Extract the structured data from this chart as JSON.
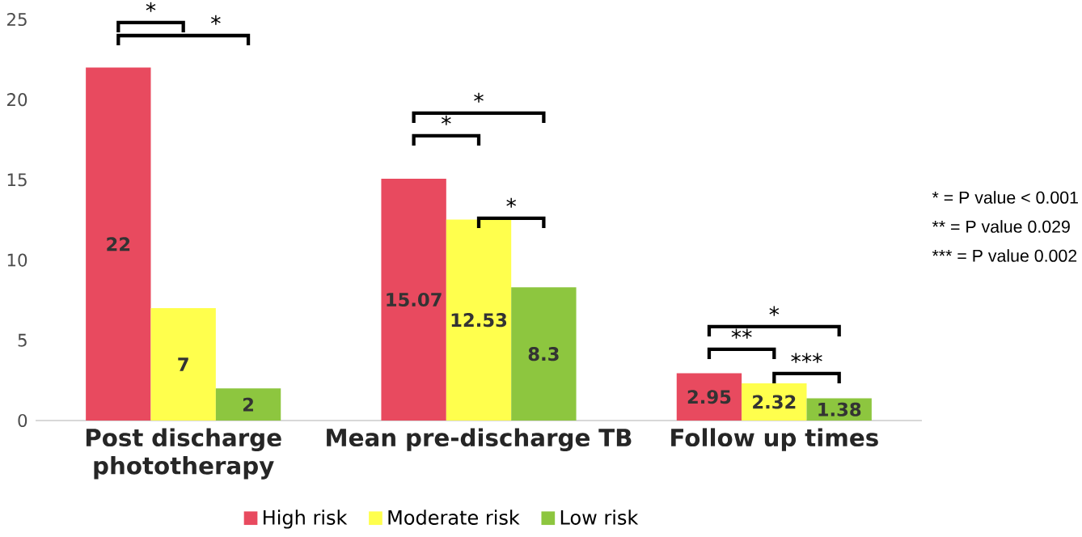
{
  "chart_data": {
    "type": "bar",
    "categories": [
      "Post discharge phototherapy",
      "Mean pre-discharge TB",
      "Follow up times"
    ],
    "series": [
      {
        "name": "High risk",
        "color": "#e84a5f",
        "values": [
          22,
          15.07,
          2.95
        ]
      },
      {
        "name": "Moderate risk",
        "color": "#ffff4d",
        "values": [
          7,
          12.53,
          2.32
        ]
      },
      {
        "name": "Low risk",
        "color": "#8dc63f",
        "values": [
          2,
          8.3,
          1.38
        ]
      }
    ],
    "ylim": [
      0,
      25
    ],
    "yticks": [
      0,
      5,
      10,
      15,
      20,
      25
    ],
    "data_labels": true,
    "legend": "bottom",
    "grid": false,
    "annotations": [
      "*",
      "*",
      "*",
      "*",
      "*",
      "*",
      "**",
      "***",
      "* = P value < 0.001",
      "** = P value 0.029",
      "*** = P value 0.002"
    ]
  }
}
